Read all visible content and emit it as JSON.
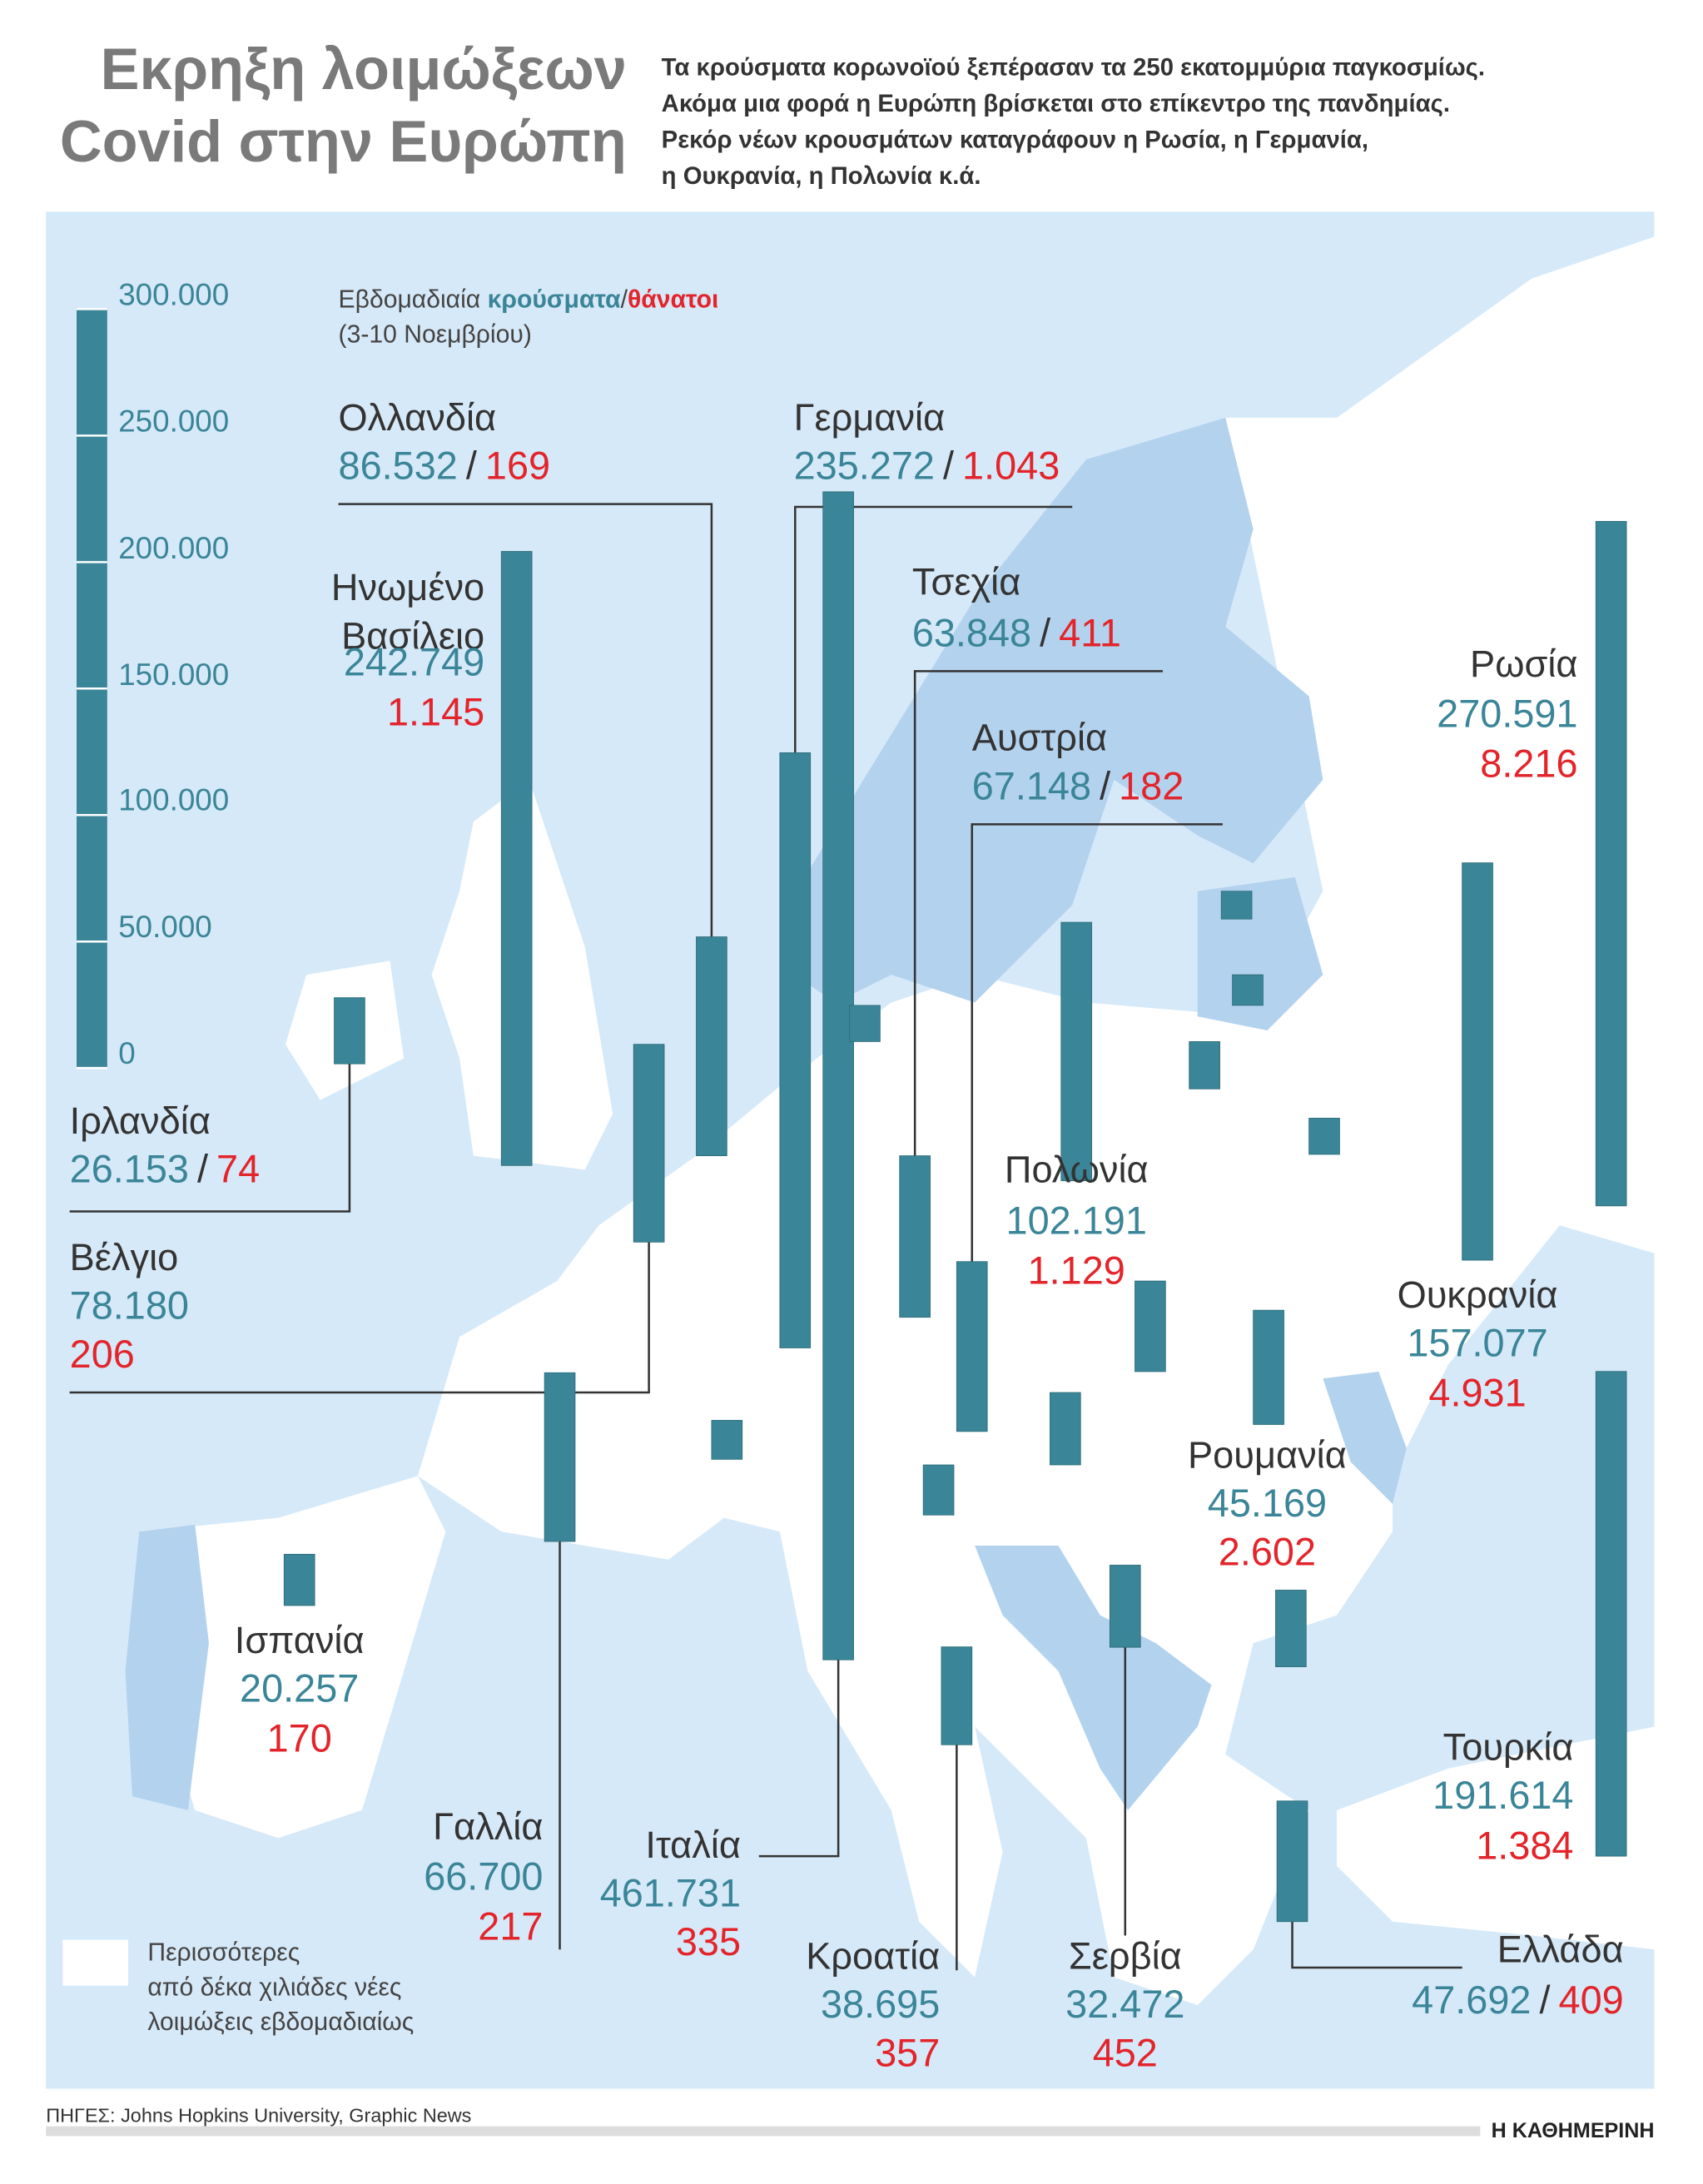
{
  "title": [
    "Εκρηξη λοιμώξεων",
    "Covid στην Ευρώπη"
  ],
  "subtitle": [
    "Τα κρούσματα κορωνοϊού ξεπέρασαν τα 250 εκατομμύρια παγκοσμίως.",
    "Ακόμα μια φορά η Ευρώπη βρίσκεται στο επίκεντρο της πανδημίας.",
    "Ρεκόρ νέων κρουσμάτων καταγράφουν η Ρωσία, η Γερμανία,",
    "η Ουκρανία, η Πολωνία κ.ά."
  ],
  "chart_data": {
    "type": "bar",
    "legend": {
      "prefix": "Εβδομαδιαία",
      "separator": "/",
      "period": "(3-10 Νοεμβρίου)"
    },
    "categories": [
      "Ολλανδία",
      "Γερμανία",
      "Ηνωμένο Βασίλειο",
      "Τσεχία",
      "Αυστρία",
      "Ρωσία",
      "Ιρλανδία",
      "Πολωνία",
      "Ουκρανία",
      "Βέλγιο",
      "Ρουμανία",
      "Ισπανία",
      "Γαλλία",
      "Ιταλία",
      "Κροατία",
      "Σερβία",
      "Ελλάδα",
      "Τουρκία",
      null,
      null,
      null,
      null,
      null,
      null,
      null,
      null,
      null,
      null
    ],
    "series": [
      {
        "name": "κρούσματα",
        "color": "#3a8597",
        "values": [
          86532,
          235272,
          242749,
          63848,
          67148,
          270591,
          26153,
          102191,
          157077,
          78180,
          45169,
          20257,
          66700,
          461731,
          38695,
          32472,
          47692,
          191614,
          18700,
          12100,
          11000,
          14300,
          14300,
          28600,
          35800,
          30300,
          15400,
          19800
        ],
        "value_labels": [
          "86.532",
          "235.272",
          "242.749",
          "63.848",
          "67.148",
          "270.591",
          "26.153",
          "102.191",
          "157.077",
          "78.180",
          "45.169",
          "20.257",
          "66.700",
          "461.731",
          "38.695",
          "32.472",
          "47.692",
          "191.614",
          null,
          null,
          null,
          null,
          null,
          null,
          null,
          null,
          null,
          null
        ]
      },
      {
        "name": "θάνατοι",
        "color": "#e3242b",
        "values": [
          169,
          1043,
          1145,
          411,
          182,
          8216,
          74,
          1129,
          4931,
          206,
          2602,
          170,
          217,
          335,
          357,
          452,
          409,
          1384,
          null,
          null,
          null,
          null,
          null,
          null,
          null,
          null,
          null,
          null
        ],
        "value_labels": [
          "169",
          "1.043",
          "1.145",
          "411",
          "182",
          "8.216",
          "74",
          "1.129",
          "4.931",
          "206",
          "2.602",
          "170",
          "217",
          "335",
          "357",
          "452",
          "409",
          "1.384",
          null,
          null,
          null,
          null,
          null,
          null,
          null,
          null,
          null,
          null
        ]
      }
    ],
    "ylim": [
      0,
      300000
    ],
    "yticks": [
      0,
      {
        "value": 50000,
        "label": "50.000"
      },
      {
        "value": 100000,
        "label": "100.000"
      },
      {
        "value": 150000,
        "label": "150.000"
      },
      {
        "value": 200000,
        "label": "200.000"
      },
      {
        "value": 250000,
        "label": "250.000"
      },
      {
        "value": 300000,
        "label": "300.000"
      }
    ]
  },
  "map_legend": [
    "Περισσότερες",
    "από δέκα χιλιάδες νέες",
    "λοιμώξεις εβδομαδιαίως"
  ],
  "source": {
    "label": "ΠΗΓΕΣ:",
    "text": "Johns Hopkins University, Graphic News"
  },
  "brand": "Η ΚΑΘΗΜΕΡΙΝΗ"
}
